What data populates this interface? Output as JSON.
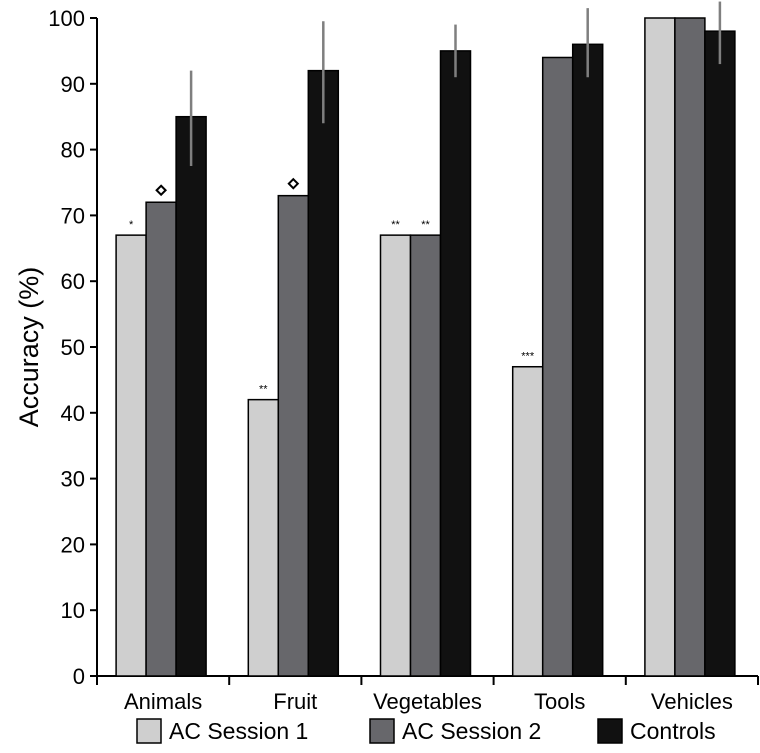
{
  "chart_data": {
    "type": "bar",
    "ylabel": "Accuracy (%)",
    "xlabel": "",
    "ylim": [
      0,
      100
    ],
    "yticks": [
      0,
      10,
      20,
      30,
      40,
      50,
      60,
      70,
      80,
      90,
      100
    ],
    "categories": [
      "Animals",
      "Fruit",
      "Vegetables",
      "Tools",
      "Vehicles"
    ],
    "series": [
      {
        "name": "AC Session 1",
        "color": "#cfcfcf",
        "values": [
          67,
          42,
          67,
          47,
          100
        ]
      },
      {
        "name": "AC Session 2",
        "color": "#67676b",
        "values": [
          72,
          73,
          67,
          94,
          100
        ]
      },
      {
        "name": "Controls",
        "color": "#111111",
        "values": [
          85,
          92,
          95,
          96,
          98
        ],
        "error": [
          [
            77.5,
            92
          ],
          [
            84,
            99.5
          ],
          [
            91,
            99
          ],
          [
            91,
            101.5
          ],
          [
            93,
            102.5
          ]
        ]
      }
    ],
    "annotations": [
      {
        "category": "Animals",
        "series": "AC Session 1",
        "text": "*"
      },
      {
        "category": "Animals",
        "series": "AC Session 2",
        "text": "◇"
      },
      {
        "category": "Fruit",
        "series": "AC Session 1",
        "text": "**"
      },
      {
        "category": "Fruit",
        "series": "AC Session 2",
        "text": "◇"
      },
      {
        "category": "Vegetables",
        "series": "AC Session 1",
        "text": "**"
      },
      {
        "category": "Vegetables",
        "series": "AC Session 2",
        "text": "**"
      },
      {
        "category": "Tools",
        "series": "AC Session 1",
        "text": "***"
      }
    ],
    "legend_position": "bottom",
    "grid": false
  }
}
